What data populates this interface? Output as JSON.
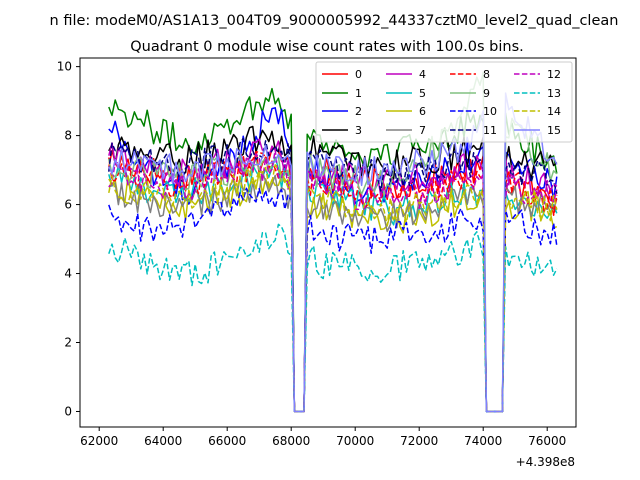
{
  "chart_data": {
    "type": "line",
    "suptitle": "n file: modeM0/AS1A13_004T09_9000005992_44337cztM0_level2_quad_clean",
    "title": "Quadrant 0 module wise count rates with 100.0s bins.",
    "x_offset_label": "+4.398e8",
    "xlabel": "",
    "ylabel": "",
    "xlim": [
      61400,
      76900
    ],
    "ylim": [
      -0.45,
      10.25
    ],
    "xticks": [
      62000,
      64000,
      66000,
      68000,
      70000,
      72000,
      74000,
      76000
    ],
    "xtick_labels": [
      "62000",
      "64000",
      "66000",
      "68000",
      "70000",
      "72000",
      "74000",
      "76000"
    ],
    "yticks": [
      0,
      2,
      4,
      6,
      8,
      10
    ],
    "ytick_labels": [
      "0",
      "2",
      "4",
      "6",
      "8",
      "10"
    ],
    "legend_placement": "top-right",
    "legend_columns": 4,
    "bin_seconds": 100,
    "x_start": 62300,
    "gaps": [
      [
        68050,
        68450
      ],
      [
        74100,
        74600
      ]
    ],
    "series": [
      {
        "name": "0",
        "color": "#ff0000",
        "dash": "solid",
        "base": 6.9,
        "trend": [
          [
            62300,
            7.3
          ],
          [
            64500,
            6.8
          ],
          [
            67500,
            7.4
          ],
          [
            68000,
            7.0
          ],
          [
            68500,
            7.1
          ],
          [
            71000,
            6.5
          ],
          [
            74000,
            7.0
          ],
          [
            74700,
            6.7
          ],
          [
            76300,
            6.0
          ]
        ]
      },
      {
        "name": "1",
        "color": "#008000",
        "dash": "solid",
        "base": 8.0,
        "trend": [
          [
            62300,
            9.0
          ],
          [
            63500,
            8.3
          ],
          [
            64800,
            7.7
          ],
          [
            66000,
            8.4
          ],
          [
            67500,
            9.2
          ],
          [
            68000,
            8.5
          ],
          [
            68500,
            8.0
          ],
          [
            70500,
            7.3
          ],
          [
            72500,
            7.9
          ],
          [
            74000,
            8.6
          ],
          [
            74700,
            8.2
          ],
          [
            76300,
            7.2
          ]
        ]
      },
      {
        "name": "2",
        "color": "#0000ff",
        "dash": "solid",
        "base": 7.0,
        "trend": [
          [
            62300,
            8.3
          ],
          [
            63500,
            7.0
          ],
          [
            64800,
            6.3
          ],
          [
            66000,
            7.2
          ],
          [
            67500,
            8.7
          ],
          [
            68000,
            7.8
          ],
          [
            68500,
            7.0
          ],
          [
            70500,
            6.3
          ],
          [
            72500,
            6.9
          ],
          [
            74000,
            7.6
          ],
          [
            74700,
            7.4
          ],
          [
            76300,
            6.4
          ]
        ]
      },
      {
        "name": "3",
        "color": "#000000",
        "dash": "solid",
        "base": 7.4,
        "trend": [
          [
            62300,
            7.6
          ],
          [
            64500,
            7.3
          ],
          [
            67500,
            8.0
          ],
          [
            68000,
            7.5
          ],
          [
            68500,
            7.6
          ],
          [
            71000,
            7.1
          ],
          [
            74000,
            7.6
          ],
          [
            74700,
            7.4
          ],
          [
            76300,
            7.0
          ]
        ]
      },
      {
        "name": "4",
        "color": "#bf00bf",
        "dash": "solid",
        "base": 7.0,
        "trend": [
          [
            62300,
            7.4
          ],
          [
            64500,
            6.9
          ],
          [
            67500,
            7.6
          ],
          [
            68000,
            7.1
          ],
          [
            68500,
            7.0
          ],
          [
            71000,
            6.6
          ],
          [
            74000,
            7.2
          ],
          [
            74700,
            7.0
          ],
          [
            76300,
            6.4
          ]
        ]
      },
      {
        "name": "5",
        "color": "#00bfbf",
        "dash": "solid",
        "base": 6.4,
        "trend": [
          [
            62300,
            6.8
          ],
          [
            64500,
            6.2
          ],
          [
            67500,
            7.0
          ],
          [
            68000,
            6.5
          ],
          [
            68500,
            6.4
          ],
          [
            71000,
            5.8
          ],
          [
            74000,
            6.4
          ],
          [
            74700,
            6.3
          ],
          [
            76300,
            5.9
          ]
        ]
      },
      {
        "name": "6",
        "color": "#bfbf00",
        "dash": "solid",
        "base": 6.1,
        "trend": [
          [
            62300,
            6.6
          ],
          [
            64500,
            5.9
          ],
          [
            67500,
            6.7
          ],
          [
            68000,
            6.2
          ],
          [
            68500,
            6.0
          ],
          [
            71000,
            5.5
          ],
          [
            74000,
            6.2
          ],
          [
            74700,
            6.1
          ],
          [
            76300,
            5.7
          ]
        ]
      },
      {
        "name": "7",
        "color": "#808080",
        "dash": "solid",
        "base": 6.0,
        "trend": [
          [
            62300,
            6.3
          ],
          [
            64500,
            5.9
          ],
          [
            67500,
            6.6
          ],
          [
            68000,
            6.1
          ],
          [
            68500,
            6.0
          ],
          [
            71000,
            5.6
          ],
          [
            74000,
            6.3
          ],
          [
            74700,
            6.2
          ],
          [
            76300,
            5.8
          ]
        ]
      },
      {
        "name": "8",
        "color": "#ff0000",
        "dash": "dashed",
        "base": 6.7,
        "trend": [
          [
            62300,
            7.1
          ],
          [
            64500,
            6.6
          ],
          [
            67500,
            7.3
          ],
          [
            68000,
            6.8
          ],
          [
            68500,
            6.7
          ],
          [
            71000,
            6.2
          ],
          [
            74000,
            6.8
          ],
          [
            74700,
            6.6
          ],
          [
            76300,
            6.1
          ]
        ]
      },
      {
        "name": "9",
        "color": "#80c080",
        "dash": "solid",
        "base": 6.9,
        "trend": [
          [
            62300,
            7.0
          ],
          [
            64500,
            6.8
          ],
          [
            67500,
            7.2
          ],
          [
            68000,
            6.9
          ],
          [
            68500,
            7.0
          ],
          [
            71000,
            6.6
          ],
          [
            73000,
            8.0
          ],
          [
            74000,
            9.6
          ],
          [
            74700,
            8.3
          ],
          [
            76300,
            6.9
          ]
        ]
      },
      {
        "name": "10",
        "color": "#0000ff",
        "dash": "dashed",
        "base": 5.5,
        "trend": [
          [
            62300,
            5.6
          ],
          [
            63500,
            5.3
          ],
          [
            64800,
            5.4
          ],
          [
            66000,
            5.9
          ],
          [
            67500,
            6.3
          ],
          [
            68000,
            6.0
          ],
          [
            68500,
            5.3
          ],
          [
            70500,
            4.9
          ],
          [
            72500,
            5.3
          ],
          [
            74000,
            5.6
          ],
          [
            74700,
            5.6
          ],
          [
            76300,
            5.0
          ]
        ]
      },
      {
        "name": "11",
        "color": "#000080",
        "dash": "dashed",
        "base": 7.2,
        "trend": [
          [
            62300,
            7.4
          ],
          [
            64500,
            7.1
          ],
          [
            67500,
            7.7
          ],
          [
            68000,
            7.3
          ],
          [
            68500,
            7.2
          ],
          [
            71000,
            6.8
          ],
          [
            74000,
            7.3
          ],
          [
            74700,
            7.1
          ],
          [
            76300,
            6.7
          ]
        ]
      },
      {
        "name": "12",
        "color": "#bf00bf",
        "dash": "dashed",
        "base": 6.6,
        "trend": [
          [
            62300,
            6.9
          ],
          [
            64500,
            6.5
          ],
          [
            67500,
            7.2
          ],
          [
            68000,
            6.7
          ],
          [
            68500,
            6.6
          ],
          [
            71000,
            6.1
          ],
          [
            74000,
            6.7
          ],
          [
            74700,
            6.6
          ],
          [
            76300,
            6.2
          ]
        ]
      },
      {
        "name": "13",
        "color": "#00bfbf",
        "dash": "dashed",
        "base": 4.3,
        "trend": [
          [
            62300,
            4.9
          ],
          [
            63500,
            4.3
          ],
          [
            64800,
            4.0
          ],
          [
            66000,
            4.3
          ],
          [
            67500,
            5.1
          ],
          [
            68000,
            4.7
          ],
          [
            68500,
            4.4
          ],
          [
            70500,
            4.0
          ],
          [
            72500,
            4.5
          ],
          [
            74000,
            4.9
          ],
          [
            74700,
            4.6
          ],
          [
            76300,
            4.0
          ]
        ]
      },
      {
        "name": "14",
        "color": "#bfbf00",
        "dash": "dashed",
        "base": 6.3,
        "trend": [
          [
            62300,
            6.6
          ],
          [
            64500,
            6.1
          ],
          [
            67500,
            6.9
          ],
          [
            68000,
            6.4
          ],
          [
            68500,
            6.3
          ],
          [
            71000,
            5.8
          ],
          [
            74000,
            6.4
          ],
          [
            74700,
            6.3
          ],
          [
            76300,
            5.9
          ]
        ]
      },
      {
        "name": "15",
        "color": "#8080ff",
        "dash": "solid",
        "base": 7.2,
        "trend": [
          [
            62300,
            7.3
          ],
          [
            64500,
            7.0
          ],
          [
            67500,
            7.5
          ],
          [
            68000,
            7.2
          ],
          [
            68500,
            7.2
          ],
          [
            71000,
            6.9
          ],
          [
            73500,
            7.6
          ],
          [
            74000,
            8.6
          ],
          [
            74700,
            8.8
          ],
          [
            76300,
            7.4
          ]
        ]
      }
    ]
  }
}
